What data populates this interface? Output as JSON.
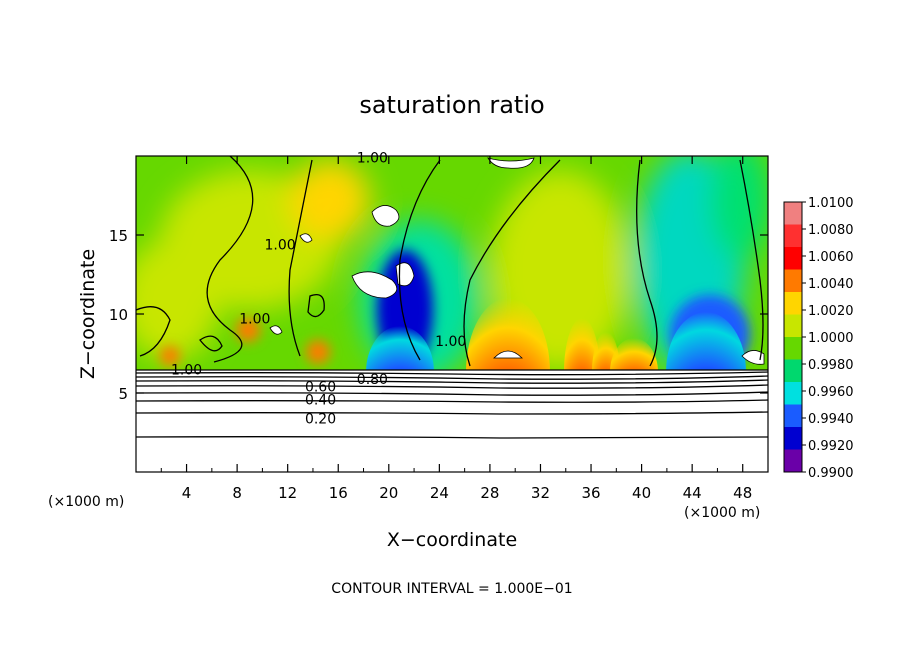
{
  "chart_data": {
    "type": "heatmap",
    "title": "saturation ratio",
    "xlabel": "X−coordinate",
    "ylabel": "Z−coordinate",
    "x_unit_left": "(×1000 m)",
    "x_unit_right": "(×1000 m)",
    "footer": "CONTOUR INTERVAL = 1.000E−01",
    "xlim": [
      0,
      50
    ],
    "ylim": [
      0,
      20
    ],
    "x_ticks": [
      4,
      8,
      12,
      16,
      20,
      24,
      28,
      32,
      36,
      40,
      44,
      48
    ],
    "y_ticks": [
      5,
      10,
      15
    ],
    "colorbar": {
      "levels": [
        "1.0100",
        "1.0080",
        "1.0060",
        "1.0040",
        "1.0020",
        "1.0000",
        "0.9980",
        "0.9960",
        "0.9940",
        "0.9920",
        "0.9900"
      ],
      "colors": [
        "#f08080",
        "#ff3030",
        "#ff0000",
        "#ff7a00",
        "#ffd500",
        "#c8e600",
        "#66d800",
        "#00d86e",
        "#00e0e0",
        "#1a5cff",
        "#0000d0",
        "#6a00a8"
      ]
    },
    "contour_labels": [
      {
        "text": "1.00",
        "x": 18.7,
        "z": 19.9
      },
      {
        "text": "1.00",
        "x": 11.4,
        "z": 14.4
      },
      {
        "text": "1.00",
        "x": 9.4,
        "z": 9.7
      },
      {
        "text": "1.00",
        "x": 24.9,
        "z": 8.3
      },
      {
        "text": "1.00",
        "x": 4.0,
        "z": 6.5
      },
      {
        "text": "0.60",
        "x": 14.6,
        "z": 5.4
      },
      {
        "text": "0.80",
        "x": 18.7,
        "z": 5.9
      },
      {
        "text": "0.40",
        "x": 14.6,
        "z": 4.6
      },
      {
        "text": "0.20",
        "x": 14.6,
        "z": 3.4
      }
    ]
  }
}
